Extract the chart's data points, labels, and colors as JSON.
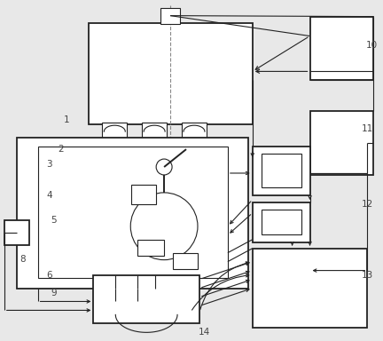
{
  "bg_color": "#e8e8e8",
  "line_color": "#222222",
  "box_color": "#ffffff",
  "label_color": "#444444",
  "fig_width": 4.32,
  "fig_height": 3.84,
  "dpi": 100
}
